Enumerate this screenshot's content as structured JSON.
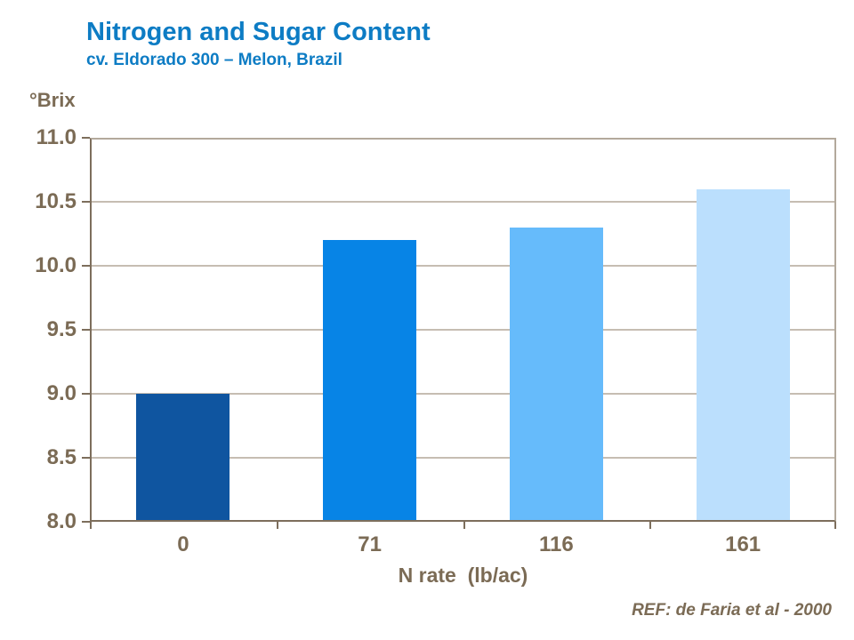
{
  "header": {
    "title": "Nitrogen and Sugar Content",
    "subtitle": "cv. Eldorado 300 – Melon, Brazil"
  },
  "footer": {
    "ref": "REF: de Faria et al - 2000"
  },
  "colors": {
    "title_blue": "#0d7cc4",
    "text_brown": "#7b6b55",
    "axis_brown": "#7d6e5c",
    "gridline": "#c6bdb2",
    "plot_border": "#b3a99c"
  },
  "chart_data": {
    "type": "bar",
    "title": "Nitrogen and Sugar Content",
    "subtitle": "cv. Eldorado 300 – Melon, Brazil",
    "categories": [
      "0",
      "71",
      "116",
      "161"
    ],
    "values": [
      9.0,
      10.2,
      10.3,
      10.6
    ],
    "bar_colors": [
      "#0f55a0",
      "#0784e6",
      "#66bbfb",
      "#bbdffd"
    ],
    "xlabel": "N rate  (lb/ac)",
    "ylabel": "°Brix",
    "ylim": [
      8.0,
      11.0
    ],
    "ytick_step": 0.5,
    "yticks": [
      "11.0",
      "10.5",
      "10.0",
      "9.5",
      "9.0",
      "8.5",
      "8.0"
    ],
    "bar_width_ratio": 0.5,
    "grid": true,
    "legend": false
  }
}
